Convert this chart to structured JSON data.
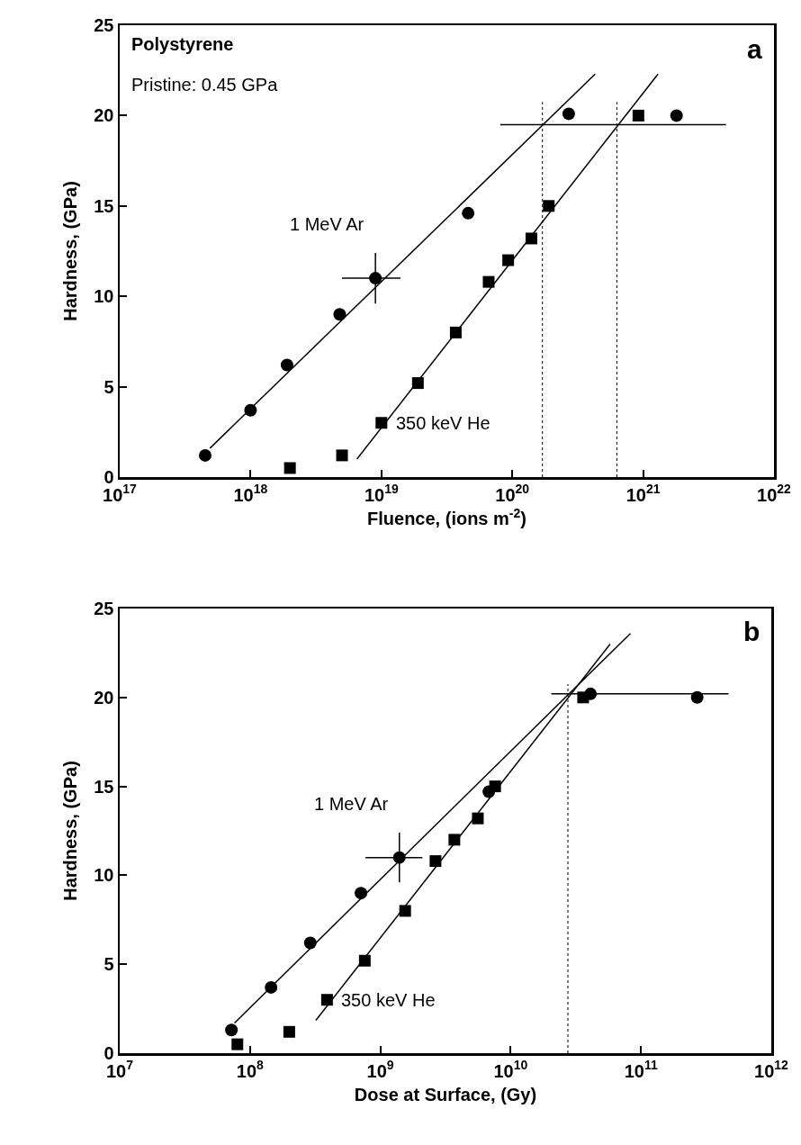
{
  "chart_data": [
    {
      "type": "scatter",
      "xlabel": "Fluence, (ions m$^{-2}$)",
      "ylabel": "Hardness, (GPa)",
      "annotations": [
        "Polystyrene",
        "Pristine: 0.45 GPa",
        "a"
      ],
      "log": "x",
      "grid": false,
      "legend": false,
      "xlim": [
        1e+17,
        1e+22
      ],
      "xticks": [
        {
          "value": 1e+17,
          "label": "10$^{17}$"
        },
        {
          "value": 1e+18,
          "label": "10$^{18}$"
        },
        {
          "value": 1e+19,
          "label": "10$^{19}$"
        },
        {
          "value": 1e+20,
          "label": "10$^{20}$"
        },
        {
          "value": 1e+21,
          "label": "10$^{21}$"
        },
        {
          "value": 1e+22,
          "label": "10$^{22}$"
        }
      ],
      "ylim": [
        0,
        25
      ],
      "yticks": [
        0,
        5,
        10,
        15,
        20,
        25
      ],
      "ref_lines": [
        {
          "axis": "x",
          "value": 1.7e+20,
          "color": "#000000",
          "line_style": "dotted"
        },
        {
          "axis": "x",
          "value": 6.3e+20,
          "color": "#000000",
          "line_style": "dotted"
        }
      ],
      "series": [
        {
          "name": "1 MeV Ar",
          "color": "#000000",
          "marker": "circle",
          "x": [
            4.5e+17,
            1e+18,
            1.9e+18,
            4.8e+18,
            9e+18,
            4.6e+19,
            2.7e+20,
            1.8e+21
          ],
          "values": [
            1.2,
            3.7,
            6.2,
            9.0,
            11.0,
            14.6,
            20.1,
            20.0
          ],
          "errors": [
            null,
            null,
            null,
            null,
            1.4,
            null,
            null,
            null
          ],
          "xerrors": [
            null,
            null,
            null,
            null,
            [
              5e+18,
              1.4e+19
            ],
            null,
            null,
            null
          ]
        },
        {
          "name": "350 keV He",
          "color": "#000000",
          "marker": "square",
          "x": [
            2e+18,
            5e+18,
            1e+19,
            1.9e+19,
            3.7e+19,
            6.6e+19,
            9.3e+19,
            1.4e+20,
            1.9e+20,
            9.2e+20
          ],
          "values": [
            0.5,
            1.2,
            3.0,
            5.2,
            8.0,
            10.8,
            12.0,
            13.2,
            15.0,
            20.0
          ]
        },
        {
          "type": "line",
          "color": "#000000",
          "marker": "none",
          "line_style": "solid",
          "x": [
            4.9e+17,
            4.3e+20
          ],
          "values": [
            1.6,
            22.3
          ]
        },
        {
          "type": "line",
          "color": "#000000",
          "marker": "none",
          "line_style": "solid",
          "x": [
            6.5e+18,
            1.3e+21
          ],
          "values": [
            1.0,
            22.3
          ]
        },
        {
          "type": "line",
          "color": "#000000",
          "marker": "none",
          "line_style": "solid",
          "x": [
            8.1e+19,
            4.3e+21
          ],
          "values": [
            19.5,
            19.5
          ]
        }
      ]
    },
    {
      "type": "scatter",
      "xlabel": "Dose at Surface, (Gy)",
      "ylabel": "Hardness, (GPa)",
      "annotations": [
        "b"
      ],
      "log": "x",
      "grid": false,
      "legend": false,
      "xlim": [
        10000000.0,
        1000000000000.0
      ],
      "xticks": [
        {
          "value": 10000000.0,
          "label": "10$^{7}$"
        },
        {
          "value": 100000000.0,
          "label": "10$^{8}$"
        },
        {
          "value": 1000000000.0,
          "label": "10$^{9}$"
        },
        {
          "value": 10000000000.0,
          "label": "10$^{10}$"
        },
        {
          "value": 100000000000.0,
          "label": "10$^{11}$"
        },
        {
          "value": 1000000000000.0,
          "label": "10$^{12}$"
        }
      ],
      "ylim": [
        0,
        25
      ],
      "yticks": [
        0,
        5,
        10,
        15,
        20,
        25
      ],
      "ref_lines": [
        {
          "axis": "x",
          "value": 27500000000.0,
          "color": "#000000",
          "line_style": "dotted"
        }
      ],
      "series": [
        {
          "name": "1 MeV Ar",
          "color": "#000000",
          "marker": "circle",
          "x": [
            72000000.0,
            145000000.0,
            290000000.0,
            710000000.0,
            1400000000.0,
            6800000000.0,
            41000000000.0,
            270000000000.0
          ],
          "values": [
            1.3,
            3.7,
            6.2,
            9.0,
            11.0,
            14.7,
            20.2,
            20.0
          ],
          "errors": [
            null,
            null,
            null,
            null,
            1.4,
            null,
            null,
            null
          ],
          "xerrors": [
            null,
            null,
            null,
            null,
            [
              770000000.0,
              2100000000.0
            ],
            null,
            null,
            null
          ]
        },
        {
          "name": "350 keV He",
          "color": "#000000",
          "marker": "square",
          "x": [
            80000000.0,
            200000000.0,
            390000000.0,
            760000000.0,
            1550000000.0,
            2650000000.0,
            3700000000.0,
            5600000000.0,
            7600000000.0,
            36000000000.0
          ],
          "values": [
            0.5,
            1.2,
            3.0,
            5.2,
            8.0,
            10.8,
            12.0,
            13.2,
            15.0,
            20.0
          ]
        },
        {
          "type": "line",
          "color": "#000000",
          "marker": "none",
          "line_style": "solid",
          "x": [
            76000000.0,
            83000000000.0
          ],
          "values": [
            1.7,
            23.6
          ]
        },
        {
          "type": "line",
          "color": "#000000",
          "marker": "none",
          "line_style": "solid",
          "x": [
            320000000.0,
            58000000000.0
          ],
          "values": [
            1.85,
            23.0
          ]
        },
        {
          "type": "line",
          "color": "#000000",
          "marker": "none",
          "line_style": "solid",
          "x": [
            20500000000.0,
            470000000000.0
          ],
          "values": [
            20.2,
            20.2
          ]
        }
      ]
    }
  ]
}
